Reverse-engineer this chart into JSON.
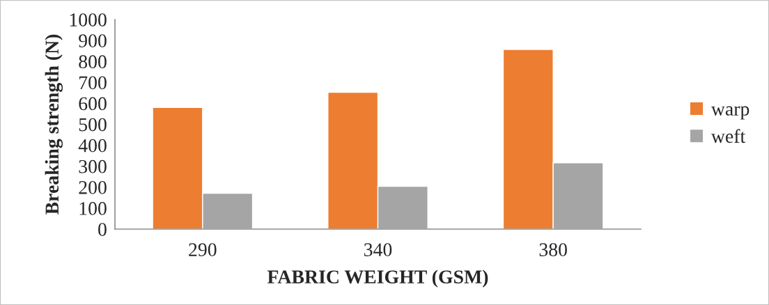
{
  "chart_data": {
    "type": "bar",
    "xlabel": "FABRIC WEIGHT (GSM)",
    "ylabel": "Breaking strength (N)",
    "categories": [
      "290",
      "340",
      "380"
    ],
    "series": [
      {
        "name": "warp",
        "color": "#ed7d31",
        "values": [
          580,
          653,
          857
        ]
      },
      {
        "name": "weft",
        "color": "#a5a5a5",
        "values": [
          171,
          204,
          316
        ]
      }
    ],
    "ylim": [
      0,
      1000
    ],
    "yticks": [
      0,
      100,
      200,
      300,
      400,
      500,
      600,
      700,
      800,
      900,
      1000
    ],
    "grid": false,
    "legend": "right"
  }
}
